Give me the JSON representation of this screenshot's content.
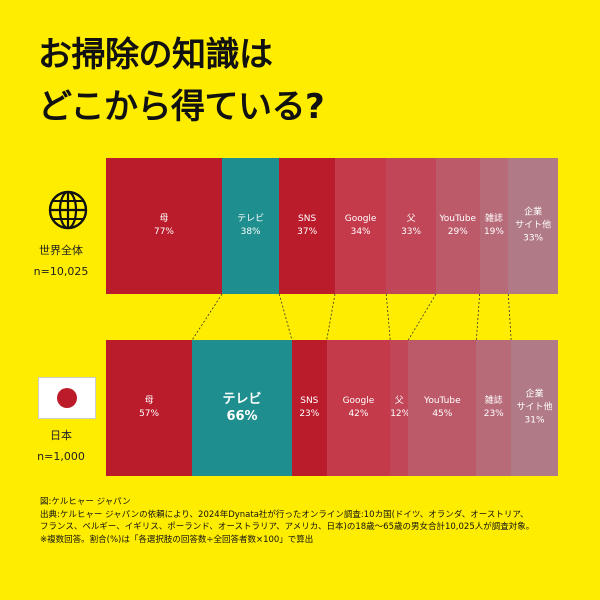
{
  "title_line1": "お掃除の知識は",
  "title_line2": "どこから得ている?",
  "colors": {
    "background": "#FFED00",
    "mother": "#BA1C2C",
    "tv": "#1E8F8E",
    "sns": "#BA1C2C"
  },
  "groups": {
    "world": {
      "label": "世界全体",
      "n": "n=10,025",
      "icon": "globe-icon"
    },
    "japan": {
      "label": "日本",
      "n": "n=1,000",
      "icon": "japan-flag-icon"
    }
  },
  "chart_data": {
    "type": "bar",
    "title": "お掃除の知識はどこから得ている?",
    "stacked_display": true,
    "categories": [
      "母",
      "テレビ",
      "SNS",
      "Google",
      "父",
      "YouTube",
      "雑誌",
      "企業サイト他"
    ],
    "series": [
      {
        "name": "世界全体",
        "values": [
          77,
          38,
          37,
          34,
          33,
          29,
          19,
          33
        ]
      },
      {
        "name": "日本",
        "values": [
          57,
          66,
          23,
          42,
          12,
          45,
          23,
          31
        ]
      }
    ],
    "segments_world": [
      {
        "label": "母",
        "value": "77%",
        "color": "#BA1C2C"
      },
      {
        "label": "テレビ",
        "value": "38%",
        "color": "#1E8F8E"
      },
      {
        "label": "SNS",
        "value": "37%",
        "color": "#BA1C2C"
      },
      {
        "label": "Google",
        "value": "34%",
        "color": "#C53A4A"
      },
      {
        "label": "父",
        "value": "33%",
        "color": "#C04658"
      },
      {
        "label": "YouTube",
        "value": "29%",
        "color": "#BD5A6A"
      },
      {
        "label": "雑誌",
        "value": "19%",
        "color": "#B76A78"
      },
      {
        "label": "企業\nサイト他",
        "value": "33%",
        "color": "#B07A86"
      }
    ],
    "segments_japan": [
      {
        "label": "母",
        "value": "57%",
        "color": "#BA1C2C"
      },
      {
        "label": "テレビ",
        "value": "66%",
        "color": "#1E8F8E",
        "emphasis": true
      },
      {
        "label": "SNS",
        "value": "23%",
        "color": "#BA1C2C"
      },
      {
        "label": "Google",
        "value": "42%",
        "color": "#C53A4A"
      },
      {
        "label": "父",
        "value": "12%",
        "color": "#C04658"
      },
      {
        "label": "YouTube",
        "value": "45%",
        "color": "#BD5A6A"
      },
      {
        "label": "雑誌",
        "value": "23%",
        "color": "#B76A78"
      },
      {
        "label": "企業\nサイト他",
        "value": "31%",
        "color": "#B07A86"
      }
    ]
  },
  "footer": {
    "line1": "図:ケルヒャー ジャパン",
    "line2": "出典:ケルヒャー ジャパンの依頼により、2024年Dynata社が行ったオンライン調査:10カ国(ドイツ、オランダ、オーストリア、",
    "line3": "フランス、ベルギー、イギリス、ポーランド、オーストラリア、アメリカ、日本)の18歳〜65歳の男女合計10,025人が調査対象。",
    "line4": "※複数回答。割合(%)は「各選択肢の回答数÷全回答者数×100」で算出"
  }
}
